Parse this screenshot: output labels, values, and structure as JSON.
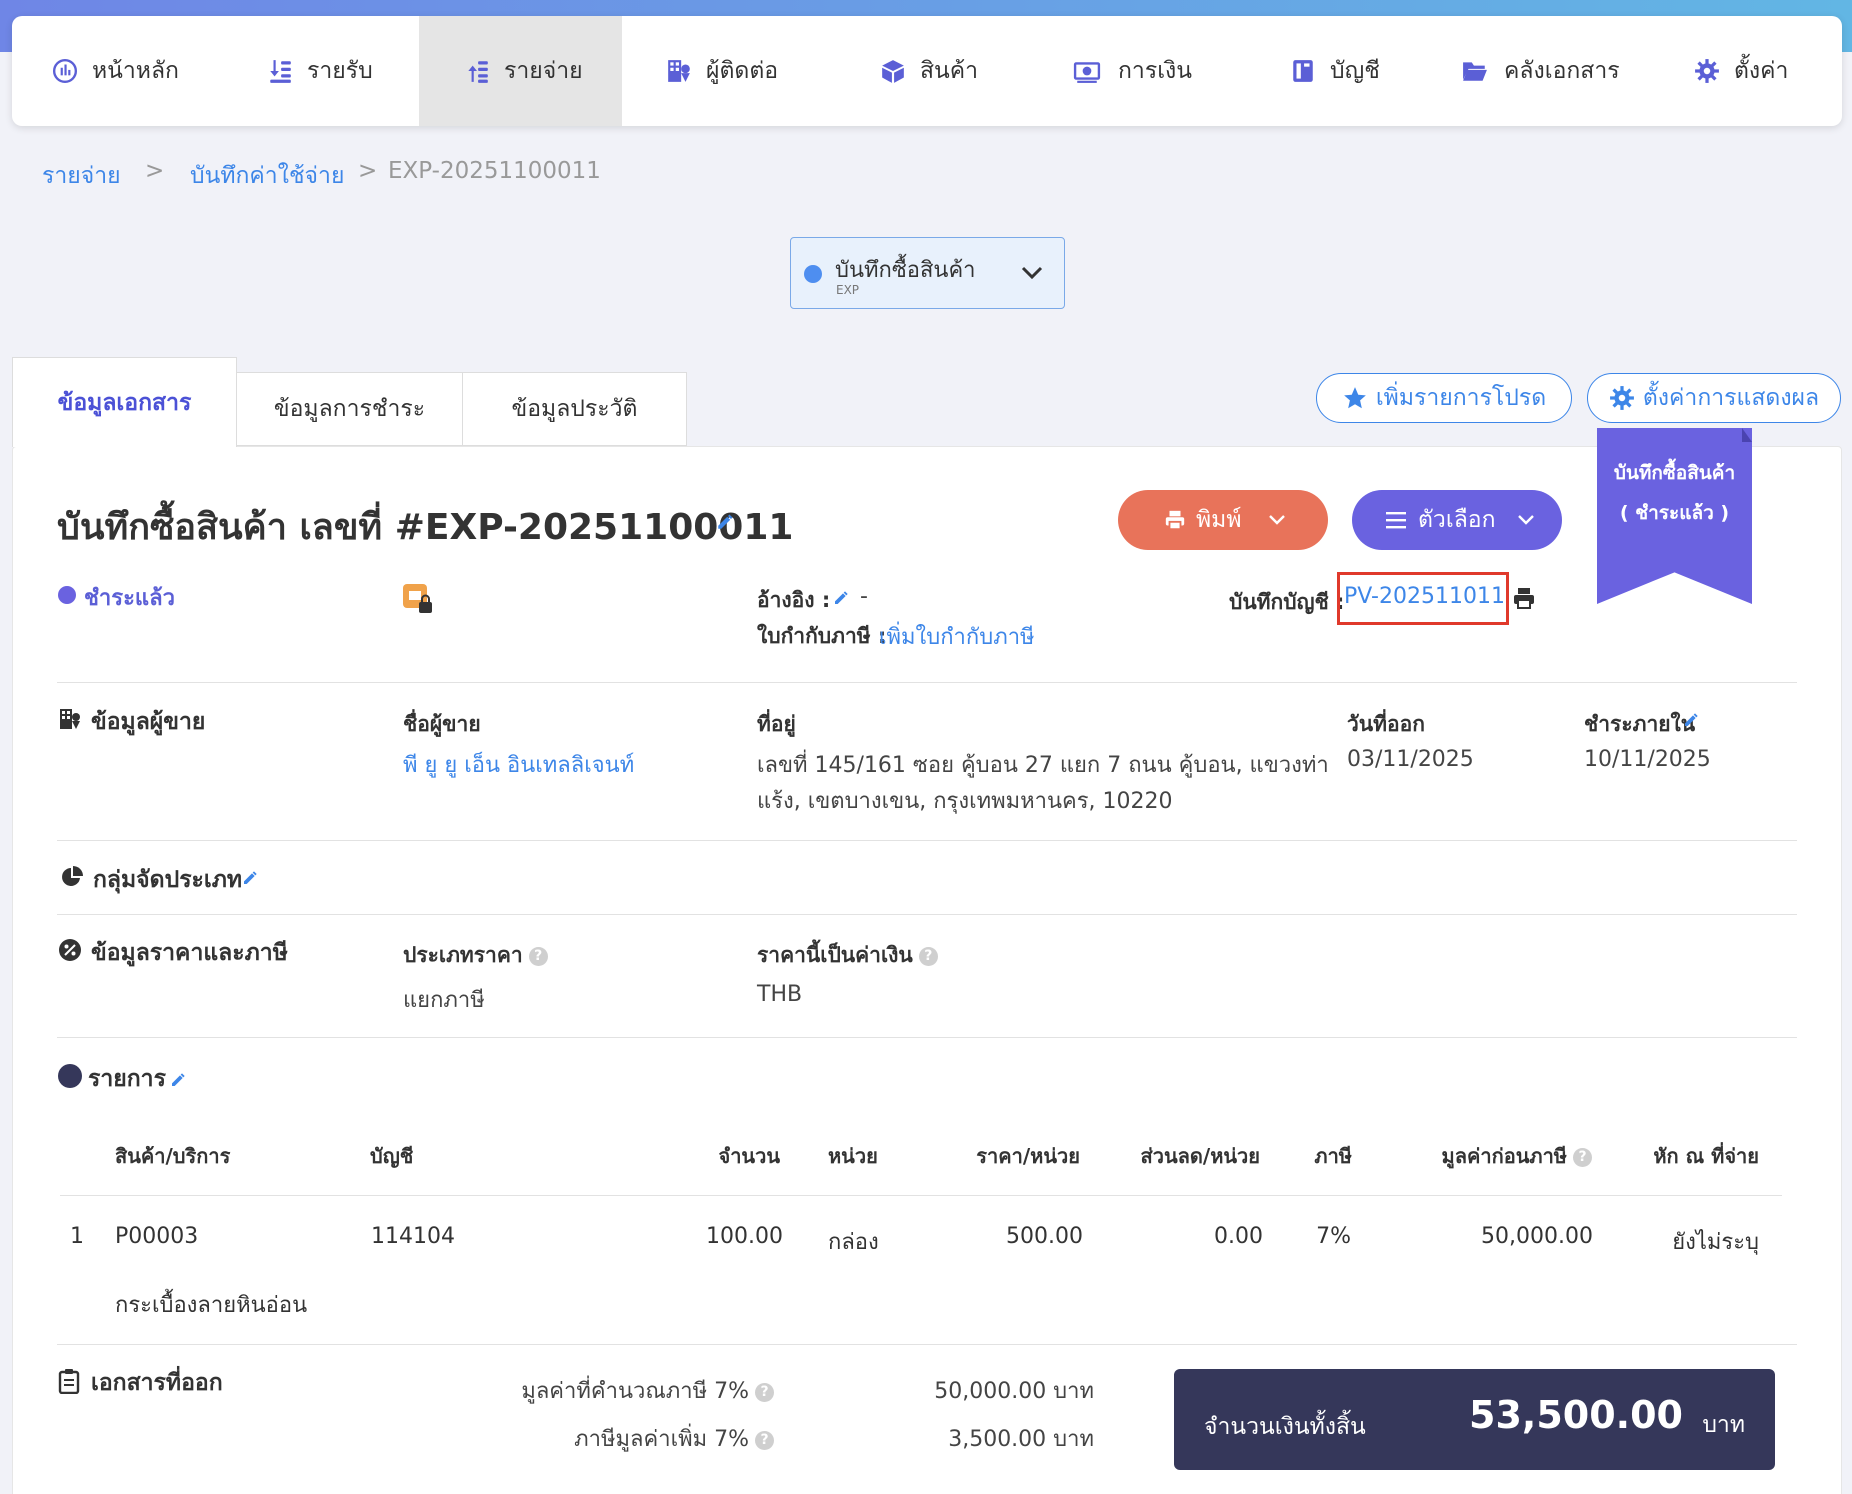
{
  "nav": {
    "items": [
      {
        "label": "หน้าหลัก"
      },
      {
        "label": "รายรับ"
      },
      {
        "label": "รายจ่าย"
      },
      {
        "label": "ผู้ติดต่อ"
      },
      {
        "label": "สินค้า"
      },
      {
        "label": "การเงิน"
      },
      {
        "label": "บัญชี"
      },
      {
        "label": "คลังเอกสาร"
      },
      {
        "label": "ตั้งค่า"
      }
    ]
  },
  "breadcrumb": {
    "item1": "รายจ่าย",
    "item2": "บันทึกค่าใช้จ่าย",
    "sep": ">",
    "current": "EXP-20251100011"
  },
  "doc_selector": {
    "label": "บันทึกซื้อสินค้า",
    "sub": "EXP"
  },
  "tabs": {
    "doc_info": "ข้อมูลเอกสาร",
    "payment": "ข้อมูลการชำระ",
    "history": "ข้อมูลประวัติ"
  },
  "actions": {
    "favorite": "เพิ่มรายการโปรด",
    "display_settings": "ตั้งค่าการแสดงผล",
    "print": "พิมพ์",
    "options": "ตัวเลือก"
  },
  "ribbon": {
    "line1": "บันทึกซื้อสินค้า",
    "line2": "( ชำระแล้ว )"
  },
  "doc": {
    "title": "บันทึกซื้อสินค้า เลขที่ #EXP-20251100011",
    "status": "ชำระแล้ว",
    "ref_label": "อ้างอิง :",
    "ref_value": "-",
    "tax_invoice_label": "ใบกำกับภาษี :",
    "tax_invoice_link": "เพิ่มใบกำกับภาษี",
    "journal_label": "บันทึกบัญชี :",
    "journal_link": "PV-202511011"
  },
  "vendor": {
    "section": "ข้อมูลผู้ขาย",
    "name_label": "ชื่อผู้ขาย",
    "name": "พี ยู ยู เอ็น อินเทลลิเจนท์",
    "address_label": "ที่อยู่",
    "address_line1": "เลขที่ 145/161 ซอย คู้บอน 27 แยก 7 ถนน คู้บอน, แขวงท่า",
    "address_line2": "แร้ง, เขตบางเขน, กรุงเทพมหานคร, 10220",
    "issue_label": "วันที่ออก",
    "issue_date": "03/11/2025",
    "due_label": "ชำระภายใน",
    "due_date": "10/11/2025"
  },
  "category": {
    "section": "กลุ่มจัดประเภท"
  },
  "pricing": {
    "section": "ข้อมูลราคาและภาษี",
    "price_type_label": "ประเภทราคา",
    "price_type": "แยกภาษี",
    "currency_label": "ราคานี้เป็นค่าเงิน",
    "currency": "THB"
  },
  "items": {
    "section": "รายการ",
    "headers": {
      "product": "สินค้า/บริการ",
      "account": "บัญชี",
      "qty": "จำนวน",
      "unit": "หน่วย",
      "price": "ราคา/หน่วย",
      "discount": "ส่วนลด/หน่วย",
      "tax": "ภาษี",
      "pretax": "มูลค่าก่อนภาษี",
      "wht": "หัก ณ ที่จ่าย"
    },
    "rows": [
      {
        "no": "1",
        "code": "P00003",
        "account": "114104",
        "qty": "100.00",
        "unit": "กล่อง",
        "price": "500.00",
        "discount": "0.00",
        "tax": "7%",
        "pretax": "50,000.00",
        "wht": "ยังไม่ระบุ",
        "desc": "กระเบื้องลายหินอ่อน"
      }
    ]
  },
  "summary": {
    "section": "เอกสารที่ออก",
    "taxable_label": "มูลค่าที่คำนวณภาษี 7%",
    "taxable_value": "50,000.00 บาท",
    "vat_label": "ภาษีมูลค่าเพิ่ม 7%",
    "vat_value": "3,500.00 บาท",
    "total_label": "จำนวนเงินทั้งสิ้น",
    "total_value": "53,500.00",
    "total_unit": "บาท"
  },
  "colors": {
    "accent": "#4b51d6",
    "link": "#3d86e8",
    "print_btn": "#e8735a",
    "options_btn": "#6a62e0",
    "ribbon": "#6a62e0",
    "total_box": "#35375a",
    "highlight": "#e0392b"
  }
}
